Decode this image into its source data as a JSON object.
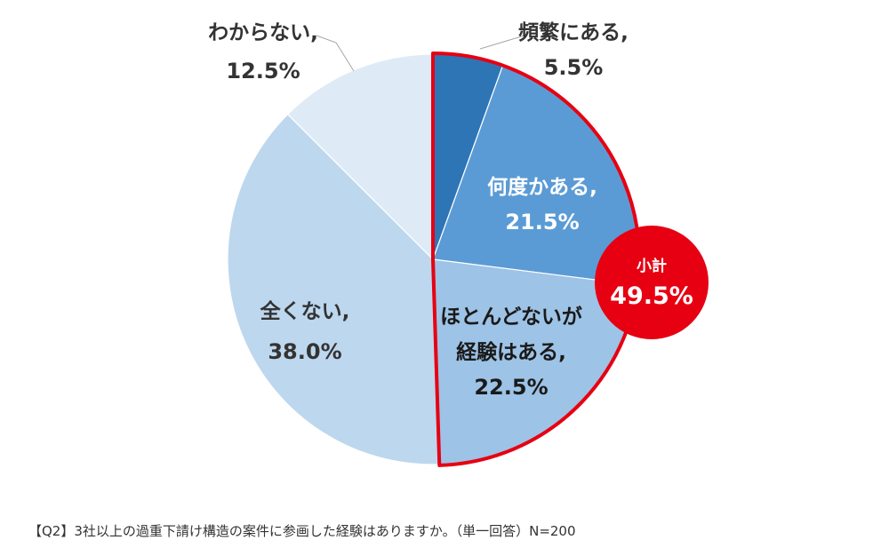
{
  "chart_data": {
    "type": "pie",
    "slices": [
      {
        "label": "頻繁にある,",
        "value": 5.5,
        "value_label": "5.5%",
        "color": "#2E75B6"
      },
      {
        "label": "何度かある,",
        "value": 21.5,
        "value_label": "21.5%",
        "color": "#5B9BD5"
      },
      {
        "label_lines": [
          "ほとんどないが",
          "経験はある,"
        ],
        "value": 22.5,
        "value_label": "22.5%",
        "color": "#9DC3E6"
      },
      {
        "label": "全くない,",
        "value": 38.0,
        "value_label": "38.0%",
        "color": "#BDD7EE"
      },
      {
        "label": "わからない,",
        "value": 12.5,
        "value_label": "12.5%",
        "color": "#DEEBF7"
      }
    ],
    "subtotal": {
      "label": "小計",
      "value": 49.5,
      "value_label": "49.5%",
      "color": "#E60012"
    },
    "highlight_color": "#E60012"
  },
  "caption": "【Q2】3社以上の過重下請け構造の案件に参画した経験はありますか。（単一回答）N=200"
}
